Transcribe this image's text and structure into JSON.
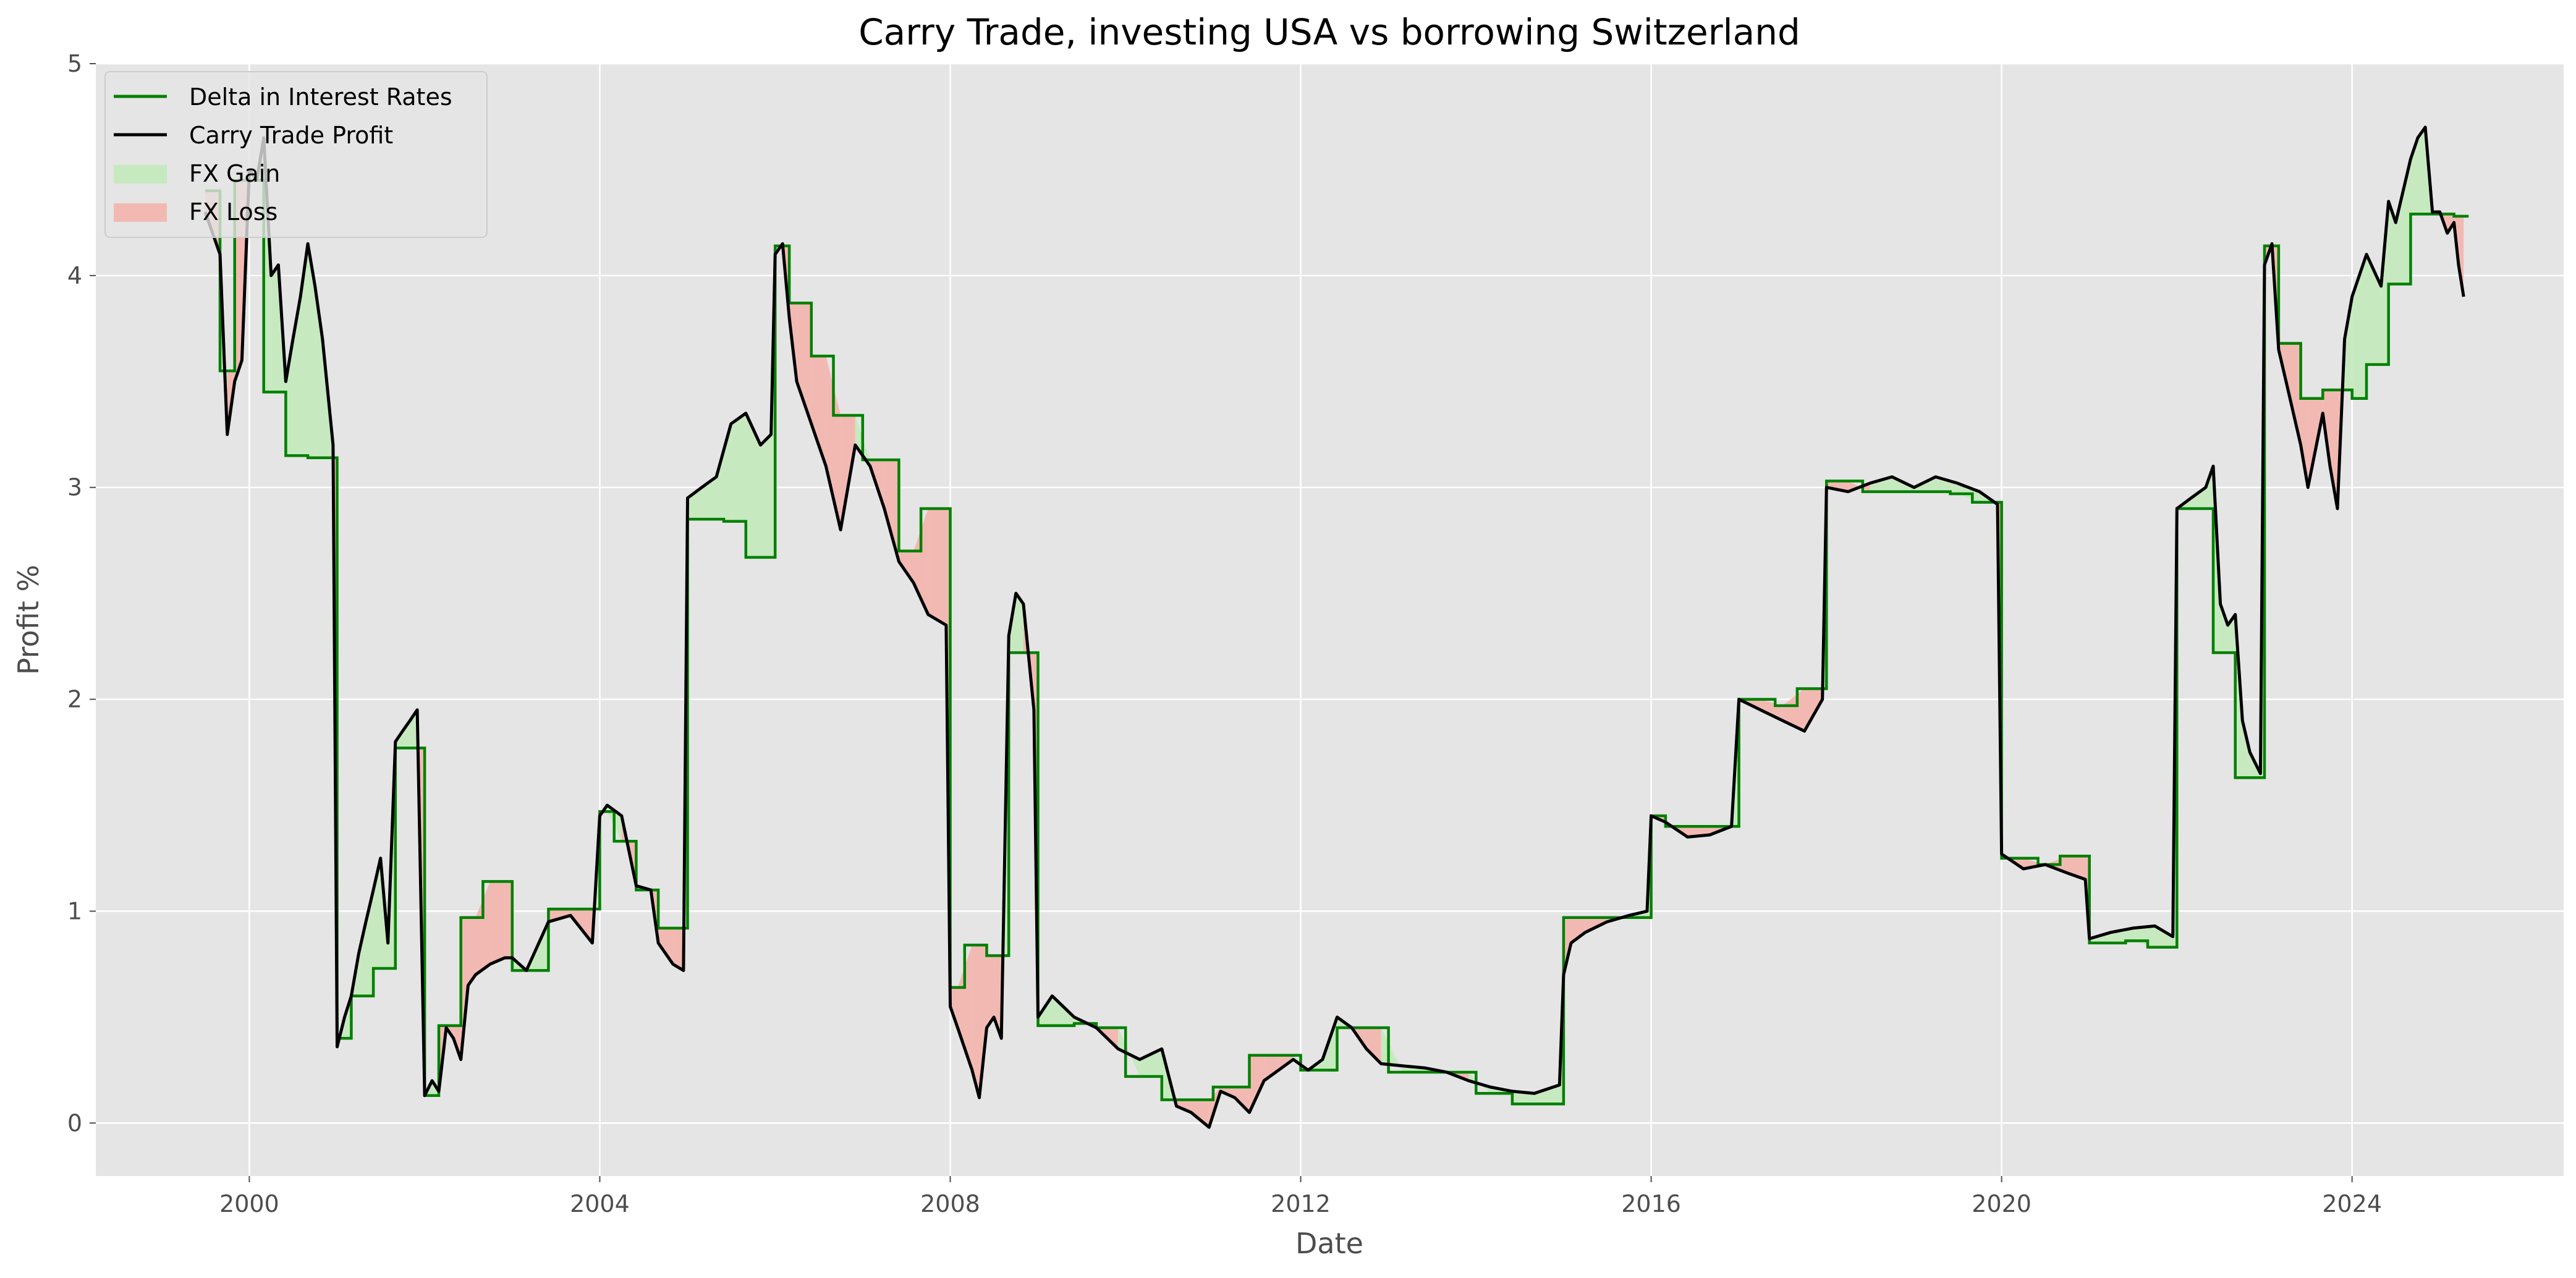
{
  "chart_data": {
    "type": "line",
    "title": "Carry Trade, investing USA vs borrowing Switzerland",
    "xlabel": "Date",
    "ylabel": "Profit %",
    "xlim": [
      "1998-04-01",
      "2026-06-01"
    ],
    "ylim": [
      -0.25,
      5
    ],
    "x_ticks": [
      "2000",
      "2004",
      "2008",
      "2012",
      "2016",
      "2020",
      "2024"
    ],
    "y_ticks": [
      "0",
      "1",
      "2",
      "3",
      "4",
      "5"
    ],
    "grid": true,
    "legend": "top-left",
    "colors": {
      "delta": "#008000",
      "carry": "#000000",
      "gain": "#c7e9c0",
      "loss": "#f2b9b3",
      "plot_bg": "#e5e5e5",
      "grid": "#ffffff"
    },
    "legend_entries": [
      {
        "label": "Delta in Interest Rates",
        "kind": "line",
        "color": "#008000"
      },
      {
        "label": "Carry Trade Profit",
        "kind": "line",
        "color": "#000000"
      },
      {
        "label": "FX Gain",
        "kind": "patch",
        "color": "#c7e9c0"
      },
      {
        "label": "FX Loss",
        "kind": "patch",
        "color": "#f2b9b3"
      }
    ],
    "series": [
      {
        "name": "Delta in Interest Rates",
        "steps": [
          [
            "1999-07-01",
            4.4
          ],
          [
            "1999-09-01",
            3.55
          ],
          [
            "1999-11-01",
            4.45
          ],
          [
            "2000-03-01",
            3.45
          ],
          [
            "2000-06-01",
            3.15
          ],
          [
            "2000-09-01",
            3.14
          ],
          [
            "2001-01-01",
            0.4
          ],
          [
            "2001-03-01",
            0.6
          ],
          [
            "2001-06-01",
            0.73
          ],
          [
            "2001-09-01",
            1.77
          ],
          [
            "2002-01-01",
            0.13
          ],
          [
            "2002-03-01",
            0.46
          ],
          [
            "2002-06-01",
            0.97
          ],
          [
            "2002-09-01",
            1.14
          ],
          [
            "2003-01-01",
            0.72
          ],
          [
            "2003-06-01",
            1.01
          ],
          [
            "2004-01-01",
            1.47
          ],
          [
            "2004-03-01",
            1.33
          ],
          [
            "2004-06-01",
            1.1
          ],
          [
            "2004-09-01",
            0.92
          ],
          [
            "2005-01-01",
            2.85
          ],
          [
            "2005-06-01",
            2.84
          ],
          [
            "2005-09-01",
            2.67
          ],
          [
            "2006-01-01",
            4.14
          ],
          [
            "2006-03-01",
            3.87
          ],
          [
            "2006-06-01",
            3.62
          ],
          [
            "2006-09-01",
            3.34
          ],
          [
            "2007-01-01",
            3.13
          ],
          [
            "2007-06-01",
            2.7
          ],
          [
            "2007-09-01",
            2.9
          ],
          [
            "2008-01-01",
            0.64
          ],
          [
            "2008-03-01",
            0.84
          ],
          [
            "2008-06-01",
            0.79
          ],
          [
            "2008-09-01",
            2.22
          ],
          [
            "2009-01-01",
            0.46
          ],
          [
            "2009-06-01",
            0.47
          ],
          [
            "2009-09-01",
            0.45
          ],
          [
            "2010-01-01",
            0.22
          ],
          [
            "2010-06-01",
            0.11
          ],
          [
            "2011-01-01",
            0.17
          ],
          [
            "2011-06-01",
            0.32
          ],
          [
            "2012-01-01",
            0.25
          ],
          [
            "2012-06-01",
            0.45
          ],
          [
            "2013-01-01",
            0.24
          ],
          [
            "2014-01-01",
            0.14
          ],
          [
            "2014-06-01",
            0.09
          ],
          [
            "2015-01-01",
            0.97
          ],
          [
            "2016-01-01",
            1.45
          ],
          [
            "2016-03-01",
            1.4
          ],
          [
            "2017-01-01",
            2.0
          ],
          [
            "2017-06-01",
            1.97
          ],
          [
            "2017-09-01",
            2.05
          ],
          [
            "2018-01-01",
            3.03
          ],
          [
            "2018-06-01",
            2.98
          ],
          [
            "2019-06-01",
            2.97
          ],
          [
            "2019-09-01",
            2.93
          ],
          [
            "2020-01-01",
            1.25
          ],
          [
            "2020-06-01",
            1.22
          ],
          [
            "2020-09-01",
            1.26
          ],
          [
            "2021-01-01",
            0.85
          ],
          [
            "2021-06-01",
            0.86
          ],
          [
            "2021-09-01",
            0.83
          ],
          [
            "2022-01-01",
            2.9
          ],
          [
            "2022-06-01",
            2.22
          ],
          [
            "2022-09-01",
            1.63
          ],
          [
            "2023-01-01",
            4.14
          ],
          [
            "2023-03-01",
            3.68
          ],
          [
            "2023-06-01",
            3.42
          ],
          [
            "2023-09-01",
            3.46
          ],
          [
            "2024-01-01",
            3.42
          ],
          [
            "2024-03-01",
            3.58
          ],
          [
            "2024-06-01",
            3.96
          ],
          [
            "2024-09-01",
            4.29
          ],
          [
            "2025-03-01",
            4.28
          ],
          [
            "2025-05-01",
            4.28
          ]
        ]
      },
      {
        "name": "Carry Trade Profit",
        "points": [
          [
            "1999-07-01",
            4.3
          ],
          [
            "1999-08-01",
            4.2
          ],
          [
            "1999-09-01",
            4.1
          ],
          [
            "1999-10-01",
            3.25
          ],
          [
            "1999-11-01",
            3.5
          ],
          [
            "1999-12-01",
            3.6
          ],
          [
            "2000-01-01",
            4.5
          ],
          [
            "2000-02-01",
            4.45
          ],
          [
            "2000-03-01",
            4.65
          ],
          [
            "2000-04-01",
            4.0
          ],
          [
            "2000-05-01",
            4.05
          ],
          [
            "2000-06-01",
            3.5
          ],
          [
            "2000-07-01",
            3.7
          ],
          [
            "2000-08-01",
            3.9
          ],
          [
            "2000-09-01",
            4.15
          ],
          [
            "2000-10-01",
            3.95
          ],
          [
            "2000-11-01",
            3.7
          ],
          [
            "2000-12-15",
            3.2
          ],
          [
            "2001-01-01",
            0.36
          ],
          [
            "2001-02-01",
            0.5
          ],
          [
            "2001-03-01",
            0.6
          ],
          [
            "2001-04-01",
            0.8
          ],
          [
            "2001-05-01",
            0.95
          ],
          [
            "2001-06-01",
            1.1
          ],
          [
            "2001-07-01",
            1.25
          ],
          [
            "2001-08-01",
            0.85
          ],
          [
            "2001-09-01",
            1.8
          ],
          [
            "2001-10-01",
            1.85
          ],
          [
            "2001-11-01",
            1.9
          ],
          [
            "2001-12-01",
            1.95
          ],
          [
            "2002-01-01",
            0.13
          ],
          [
            "2002-02-01",
            0.2
          ],
          [
            "2002-03-01",
            0.15
          ],
          [
            "2002-04-01",
            0.45
          ],
          [
            "2002-05-01",
            0.4
          ],
          [
            "2002-06-01",
            0.3
          ],
          [
            "2002-07-01",
            0.65
          ],
          [
            "2002-08-01",
            0.7
          ],
          [
            "2002-10-01",
            0.75
          ],
          [
            "2002-12-01",
            0.78
          ],
          [
            "2003-01-01",
            0.78
          ],
          [
            "2003-03-01",
            0.72
          ],
          [
            "2003-06-01",
            0.95
          ],
          [
            "2003-09-01",
            0.98
          ],
          [
            "2003-12-01",
            0.85
          ],
          [
            "2004-01-01",
            1.45
          ],
          [
            "2004-02-01",
            1.5
          ],
          [
            "2004-04-01",
            1.45
          ],
          [
            "2004-06-01",
            1.12
          ],
          [
            "2004-08-01",
            1.1
          ],
          [
            "2004-09-01",
            0.85
          ],
          [
            "2004-11-01",
            0.75
          ],
          [
            "2004-12-15",
            0.72
          ],
          [
            "2005-01-01",
            2.95
          ],
          [
            "2005-03-01",
            3.0
          ],
          [
            "2005-05-01",
            3.05
          ],
          [
            "2005-07-01",
            3.3
          ],
          [
            "2005-09-01",
            3.35
          ],
          [
            "2005-11-01",
            3.2
          ],
          [
            "2005-12-15",
            3.25
          ],
          [
            "2006-01-01",
            4.1
          ],
          [
            "2006-02-01",
            4.15
          ],
          [
            "2006-03-01",
            3.8
          ],
          [
            "2006-04-01",
            3.5
          ],
          [
            "2006-06-01",
            3.3
          ],
          [
            "2006-08-01",
            3.1
          ],
          [
            "2006-10-01",
            2.8
          ],
          [
            "2006-12-01",
            3.2
          ],
          [
            "2007-02-01",
            3.1
          ],
          [
            "2007-04-01",
            2.9
          ],
          [
            "2007-06-01",
            2.65
          ],
          [
            "2007-08-01",
            2.55
          ],
          [
            "2007-10-01",
            2.4
          ],
          [
            "2007-12-15",
            2.35
          ],
          [
            "2008-01-01",
            0.55
          ],
          [
            "2008-02-01",
            0.45
          ],
          [
            "2008-04-01",
            0.25
          ],
          [
            "2008-05-01",
            0.12
          ],
          [
            "2008-06-01",
            0.45
          ],
          [
            "2008-07-01",
            0.5
          ],
          [
            "2008-08-01",
            0.4
          ],
          [
            "2008-09-01",
            2.3
          ],
          [
            "2008-10-01",
            2.5
          ],
          [
            "2008-11-01",
            2.45
          ],
          [
            "2008-12-15",
            1.95
          ],
          [
            "2009-01-01",
            0.5
          ],
          [
            "2009-03-01",
            0.6
          ],
          [
            "2009-06-01",
            0.5
          ],
          [
            "2009-09-01",
            0.45
          ],
          [
            "2009-12-01",
            0.35
          ],
          [
            "2010-03-01",
            0.3
          ],
          [
            "2010-06-01",
            0.35
          ],
          [
            "2010-08-01",
            0.08
          ],
          [
            "2010-10-01",
            0.05
          ],
          [
            "2010-12-15",
            -0.02
          ],
          [
            "2011-02-01",
            0.15
          ],
          [
            "2011-04-01",
            0.12
          ],
          [
            "2011-06-01",
            0.05
          ],
          [
            "2011-08-01",
            0.2
          ],
          [
            "2011-10-01",
            0.25
          ],
          [
            "2011-12-01",
            0.3
          ],
          [
            "2012-02-01",
            0.25
          ],
          [
            "2012-04-01",
            0.3
          ],
          [
            "2012-06-01",
            0.5
          ],
          [
            "2012-08-01",
            0.45
          ],
          [
            "2012-10-01",
            0.35
          ],
          [
            "2012-12-01",
            0.28
          ],
          [
            "2013-03-01",
            0.27
          ],
          [
            "2013-06-01",
            0.26
          ],
          [
            "2013-09-01",
            0.24
          ],
          [
            "2013-12-01",
            0.2
          ],
          [
            "2014-03-01",
            0.17
          ],
          [
            "2014-06-01",
            0.15
          ],
          [
            "2014-09-01",
            0.14
          ],
          [
            "2014-12-15",
            0.18
          ],
          [
            "2015-01-01",
            0.7
          ],
          [
            "2015-02-01",
            0.85
          ],
          [
            "2015-04-01",
            0.9
          ],
          [
            "2015-07-01",
            0.95
          ],
          [
            "2015-10-01",
            0.98
          ],
          [
            "2015-12-15",
            1.0
          ],
          [
            "2016-01-01",
            1.45
          ],
          [
            "2016-03-01",
            1.42
          ],
          [
            "2016-06-01",
            1.35
          ],
          [
            "2016-09-01",
            1.36
          ],
          [
            "2016-12-01",
            1.4
          ],
          [
            "2017-01-01",
            2.0
          ],
          [
            "2017-04-01",
            1.95
          ],
          [
            "2017-07-01",
            1.9
          ],
          [
            "2017-10-01",
            1.85
          ],
          [
            "2017-12-15",
            2.0
          ],
          [
            "2018-01-01",
            3.0
          ],
          [
            "2018-04-01",
            2.98
          ],
          [
            "2018-07-01",
            3.02
          ],
          [
            "2018-10-01",
            3.05
          ],
          [
            "2019-01-01",
            3.0
          ],
          [
            "2019-04-01",
            3.05
          ],
          [
            "2019-07-01",
            3.02
          ],
          [
            "2019-10-01",
            2.98
          ],
          [
            "2019-12-15",
            2.92
          ],
          [
            "2020-01-01",
            1.27
          ],
          [
            "2020-04-01",
            1.2
          ],
          [
            "2020-07-01",
            1.22
          ],
          [
            "2020-10-01",
            1.18
          ],
          [
            "2020-12-15",
            1.15
          ],
          [
            "2021-01-01",
            0.87
          ],
          [
            "2021-04-01",
            0.9
          ],
          [
            "2021-07-01",
            0.92
          ],
          [
            "2021-10-01",
            0.93
          ],
          [
            "2021-12-15",
            0.88
          ],
          [
            "2022-01-01",
            2.9
          ],
          [
            "2022-03-01",
            2.95
          ],
          [
            "2022-05-01",
            3.0
          ],
          [
            "2022-06-01",
            3.1
          ],
          [
            "2022-07-01",
            2.45
          ],
          [
            "2022-08-01",
            2.35
          ],
          [
            "2022-09-01",
            2.4
          ],
          [
            "2022-10-01",
            1.9
          ],
          [
            "2022-11-01",
            1.75
          ],
          [
            "2022-12-15",
            1.65
          ],
          [
            "2023-01-01",
            4.05
          ],
          [
            "2023-02-01",
            4.15
          ],
          [
            "2023-03-01",
            3.65
          ],
          [
            "2023-04-01",
            3.5
          ],
          [
            "2023-06-01",
            3.2
          ],
          [
            "2023-07-01",
            3.0
          ],
          [
            "2023-09-01",
            3.35
          ],
          [
            "2023-10-01",
            3.1
          ],
          [
            "2023-11-01",
            2.9
          ],
          [
            "2023-12-01",
            3.7
          ],
          [
            "2024-01-01",
            3.9
          ],
          [
            "2024-03-01",
            4.1
          ],
          [
            "2024-05-01",
            3.95
          ],
          [
            "2024-06-01",
            4.35
          ],
          [
            "2024-07-01",
            4.25
          ],
          [
            "2024-09-01",
            4.55
          ],
          [
            "2024-10-01",
            4.65
          ],
          [
            "2024-11-01",
            4.7
          ],
          [
            "2024-12-01",
            4.3
          ],
          [
            "2025-01-01",
            4.3
          ],
          [
            "2025-02-01",
            4.2
          ],
          [
            "2025-03-01",
            4.25
          ],
          [
            "2025-03-20",
            4.05
          ],
          [
            "2025-04-10",
            3.9
          ]
        ]
      }
    ]
  }
}
